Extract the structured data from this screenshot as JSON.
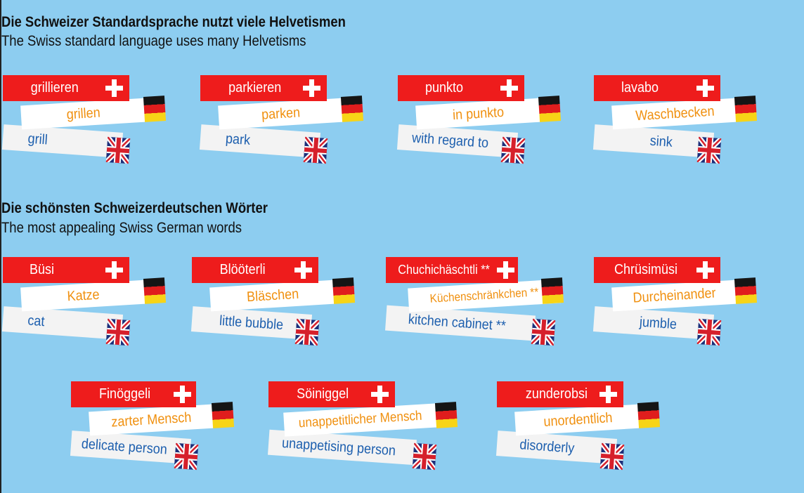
{
  "sections": [
    {
      "heading": "Die Schweizer Standardsprache nutzt viele Helvetismen",
      "subheading": "The Swiss standard language uses many Helvetisms",
      "cards": [
        {
          "swiss": "grillieren",
          "german": "grillen",
          "english": "grill"
        },
        {
          "swiss": "parkieren",
          "german": "parken",
          "english": "park"
        },
        {
          "swiss": "punkto",
          "german": "in punkto",
          "english": "with regard to"
        },
        {
          "swiss": "lavabo",
          "german": "Waschbecken",
          "english": "sink"
        }
      ]
    },
    {
      "heading": "Die schönsten Schweizerdeutschen Wörter",
      "subheading": "The most appealing Swiss German words",
      "cards": [
        {
          "swiss": "Büsi",
          "german": "Katze",
          "english": "cat"
        },
        {
          "swiss": "Blööterli",
          "german": "Bläschen",
          "english": "little bubble"
        },
        {
          "swiss": "Chuchichäschtli **",
          "german": "Küchenschränkchen **",
          "english": "kitchen cabinet **"
        },
        {
          "swiss": "Chrüsimüsi",
          "german": "Durcheinander",
          "english": "jumble"
        },
        {
          "swiss": "Finöggeli",
          "german": "zarter Mensch",
          "english": "delicate person"
        },
        {
          "swiss": "Söiniggel",
          "german": "unappetitlicher Mensch",
          "english": "unappetising person"
        },
        {
          "swiss": "zunderobsi",
          "german": "unordentlich",
          "english": "disorderly"
        }
      ]
    }
  ],
  "flags": {
    "swiss": "swiss-flag-icon",
    "german": "german-flag-icon",
    "english": "uk-flag-icon"
  },
  "colors": {
    "background": "#8dcdf0",
    "swiss_red": "#ee1c1c",
    "german_text": "#f0900f",
    "english_text": "#1d5fae"
  }
}
